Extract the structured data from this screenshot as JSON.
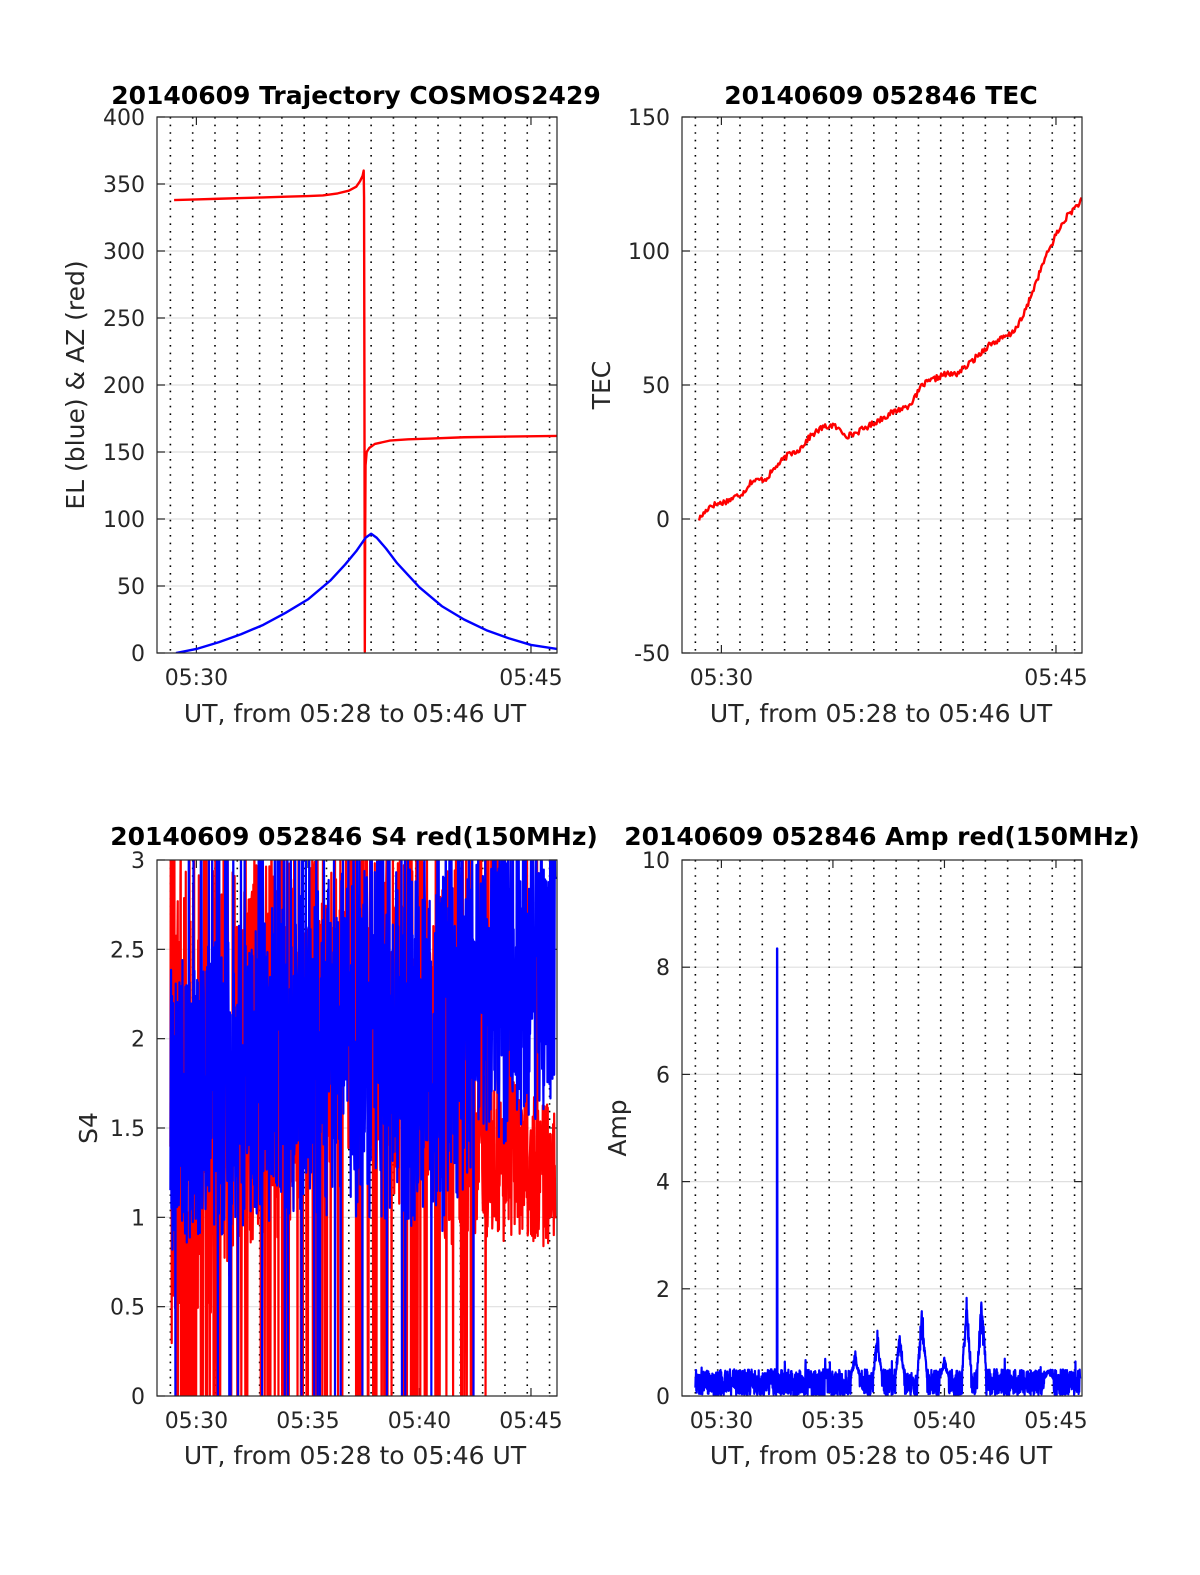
{
  "colors": {
    "red": "#ff0000",
    "blue": "#0000ff",
    "axis": "#262626",
    "grid": "#dfdfdf"
  },
  "chart_data": [
    {
      "id": "trajectory",
      "type": "line",
      "title": "20140609 Trajectory COSMOS2429",
      "xlabel": "UT, from 05:28 to 05:46 UT",
      "ylabel": "EL (blue) & AZ (red)",
      "xlim": [
        "05:28:14",
        "05:46:10"
      ],
      "ylim": [
        0,
        400
      ],
      "yticks": [
        0,
        50,
        100,
        150,
        200,
        250,
        300,
        350,
        400
      ],
      "xticks": [
        {
          "t": "05:30",
          "label": "05:30"
        },
        {
          "t": "05:45",
          "label": "05:45"
        }
      ],
      "vgrid_start": "05:28:50",
      "vgrid_step_s": 60,
      "grid": true,
      "series": [
        {
          "color": "red",
          "points": [
            [
              "05:29:00",
              338
            ],
            [
              "05:30:00",
              338.5
            ],
            [
              "05:31:00",
              339
            ],
            [
              "05:32:00",
              339.5
            ],
            [
              "05:33:00",
              340
            ],
            [
              "05:34:00",
              340.5
            ],
            [
              "05:35:00",
              341
            ],
            [
              "05:35:40",
              341.5
            ],
            [
              "05:36:20",
              343
            ],
            [
              "05:36:50",
              345
            ],
            [
              "05:37:10",
              348
            ],
            [
              "05:37:20",
              352
            ],
            [
              "05:37:27",
              356
            ],
            [
              "05:37:30",
              360
            ],
            [
              "05:37:31",
              340
            ],
            [
              "05:37:32",
              200
            ],
            [
              "05:37:33",
              1
            ],
            [
              "05:37:34",
              90
            ],
            [
              "05:37:35",
              140
            ],
            [
              "05:37:38",
              150
            ],
            [
              "05:37:45",
              153
            ],
            [
              "05:38:00",
              156
            ],
            [
              "05:38:40",
              158.5
            ],
            [
              "05:39:30",
              159.5
            ],
            [
              "05:40:30",
              160
            ],
            [
              "05:42:00",
              161
            ],
            [
              "05:44:00",
              161.5
            ],
            [
              "05:46:10",
              162
            ]
          ]
        },
        {
          "color": "blue",
          "points": [
            [
              "05:29:05",
              0
            ],
            [
              "05:30:00",
              3
            ],
            [
              "05:31:00",
              8
            ],
            [
              "05:32:00",
              14
            ],
            [
              "05:33:00",
              21
            ],
            [
              "05:34:00",
              30
            ],
            [
              "05:35:00",
              40
            ],
            [
              "05:36:00",
              54
            ],
            [
              "05:36:40",
              66
            ],
            [
              "05:37:10",
              76
            ],
            [
              "05:37:35",
              86
            ],
            [
              "05:37:50",
              89
            ],
            [
              "05:38:05",
              86
            ],
            [
              "05:38:30",
              78
            ],
            [
              "05:39:00",
              67
            ],
            [
              "05:40:00",
              49
            ],
            [
              "05:41:00",
              35
            ],
            [
              "05:42:00",
              25
            ],
            [
              "05:43:00",
              17
            ],
            [
              "05:44:00",
              11
            ],
            [
              "05:45:00",
              6
            ],
            [
              "05:46:10",
              3
            ]
          ]
        }
      ]
    },
    {
      "id": "tec",
      "type": "line",
      "title": "20140609 052846 TEC",
      "xlabel": "UT, from 05:28 to 05:46 UT",
      "ylabel": "TEC",
      "xlim": [
        "05:28:14",
        "05:46:10"
      ],
      "ylim": [
        -50,
        150
      ],
      "yticks": [
        -50,
        0,
        50,
        100,
        150
      ],
      "xticks": [
        {
          "t": "05:30",
          "label": "05:30"
        },
        {
          "t": "05:45",
          "label": "05:45"
        }
      ],
      "vgrid_start": "05:28:50",
      "vgrid_step_s": 60,
      "grid": true,
      "series": [
        {
          "color": "red",
          "points": [
            [
              "05:29:00",
              0
            ],
            [
              "05:29:30",
              5
            ],
            [
              "05:30:00",
              6
            ],
            [
              "05:30:20",
              7
            ],
            [
              "05:31:00",
              10
            ],
            [
              "05:31:20",
              14
            ],
            [
              "05:32:00",
              15
            ],
            [
              "05:32:30",
              20
            ],
            [
              "05:33:00",
              24
            ],
            [
              "05:33:30",
              26
            ],
            [
              "05:34:00",
              31
            ],
            [
              "05:34:30",
              34
            ],
            [
              "05:35:00",
              35
            ],
            [
              "05:35:20",
              33
            ],
            [
              "05:35:40",
              31
            ],
            [
              "05:36:00",
              32
            ],
            [
              "05:36:40",
              35
            ],
            [
              "05:37:30",
              39
            ],
            [
              "05:38:00",
              41
            ],
            [
              "05:38:20",
              42
            ],
            [
              "05:38:40",
              45
            ],
            [
              "05:39:00",
              50
            ],
            [
              "05:39:30",
              52
            ],
            [
              "05:40:00",
              54
            ],
            [
              "05:40:30",
              54
            ],
            [
              "05:41:00",
              57
            ],
            [
              "05:41:30",
              61
            ],
            [
              "05:42:00",
              65
            ],
            [
              "05:42:30",
              67
            ],
            [
              "05:43:00",
              69
            ],
            [
              "05:43:30",
              75
            ],
            [
              "05:44:00",
              86
            ],
            [
              "05:44:30",
              97
            ],
            [
              "05:45:00",
              106
            ],
            [
              "05:45:30",
              113
            ],
            [
              "05:46:10",
              119
            ]
          ]
        }
      ]
    },
    {
      "id": "s4",
      "type": "line",
      "title": "20140609 052846 S4 red(150MHz)",
      "xlabel": "UT, from 05:28 to 05:46 UT",
      "ylabel": "S4",
      "xlim": [
        "05:28:14",
        "05:46:10"
      ],
      "ylim": [
        0,
        3
      ],
      "yticks": [
        0,
        0.5,
        1,
        1.5,
        2,
        2.5,
        3
      ],
      "xticks": [
        {
          "t": "05:30",
          "label": "05:30"
        },
        {
          "t": "05:35",
          "label": "05:35"
        },
        {
          "t": "05:40",
          "label": "05:40"
        },
        {
          "t": "05:45",
          "label": "05:45"
        }
      ],
      "vgrid_start": "05:28:50",
      "vgrid_step_s": 60,
      "grid": true,
      "series": [
        {
          "color": "red",
          "pattern": "noise",
          "t_start": "05:28:50",
          "t_end": "05:46:05",
          "segments": [
            [
              "05:28:50",
              1.6,
              1.4,
              0.5
            ],
            [
              "05:33:00",
              1.9,
              1.1,
              0.35
            ],
            [
              "05:37:00",
              2.2,
              0.9,
              0.25
            ],
            [
              "05:41:40",
              1.9,
              1.1,
              0.35
            ],
            [
              "05:42:40",
              1.4,
              0.5,
              0.05
            ],
            [
              "05:46:05",
              1.2,
              0.4,
              0.0
            ]
          ],
          "tail_value": 1.0
        },
        {
          "color": "blue",
          "pattern": "noise",
          "t_start": "05:28:50",
          "t_end": "05:46:05",
          "segments": [
            [
              "05:28:50",
              1.6,
              0.8,
              0.04
            ],
            [
              "05:34:00",
              1.9,
              0.9,
              0.05
            ],
            [
              "05:38:00",
              2.0,
              1.0,
              0.06
            ],
            [
              "05:41:00",
              1.9,
              1.0,
              0.05
            ],
            [
              "05:42:30",
              2.2,
              0.9,
              0.02
            ],
            [
              "05:46:05",
              2.4,
              0.8,
              0.0
            ]
          ],
          "tail_value": 2.9
        }
      ]
    },
    {
      "id": "amp",
      "type": "line",
      "title": "20140609 052846 Amp red(150MHz)",
      "xlabel": "UT, from 05:28 to 05:46 UT",
      "ylabel": "Amp",
      "xlim": [
        "05:28:14",
        "05:46:10"
      ],
      "ylim": [
        0,
        10
      ],
      "yticks": [
        0,
        2,
        4,
        6,
        8,
        10
      ],
      "xticks": [
        {
          "t": "05:30",
          "label": "05:30"
        },
        {
          "t": "05:35",
          "label": "05:35"
        },
        {
          "t": "05:40",
          "label": "05:40"
        },
        {
          "t": "05:45",
          "label": "05:45"
        }
      ],
      "vgrid_start": "05:28:50",
      "vgrid_step_s": 60,
      "grid": true,
      "series": [
        {
          "color": "blue",
          "pattern": "noise",
          "t_start": "05:28:50",
          "t_end": "05:46:05",
          "baseline": 0.25,
          "baseline_amp": 0.25,
          "spikes": [
            [
              "05:32:30",
              8.35
            ],
            [
              "05:36:00",
              0.95
            ],
            [
              "05:37:00",
              1.35
            ],
            [
              "05:38:00",
              1.3
            ],
            [
              "05:39:00",
              1.9
            ],
            [
              "05:40:00",
              0.85
            ],
            [
              "05:41:00",
              2.0
            ],
            [
              "05:41:40",
              2.05
            ],
            [
              "05:44:40",
              0.6
            ]
          ]
        }
      ]
    }
  ]
}
